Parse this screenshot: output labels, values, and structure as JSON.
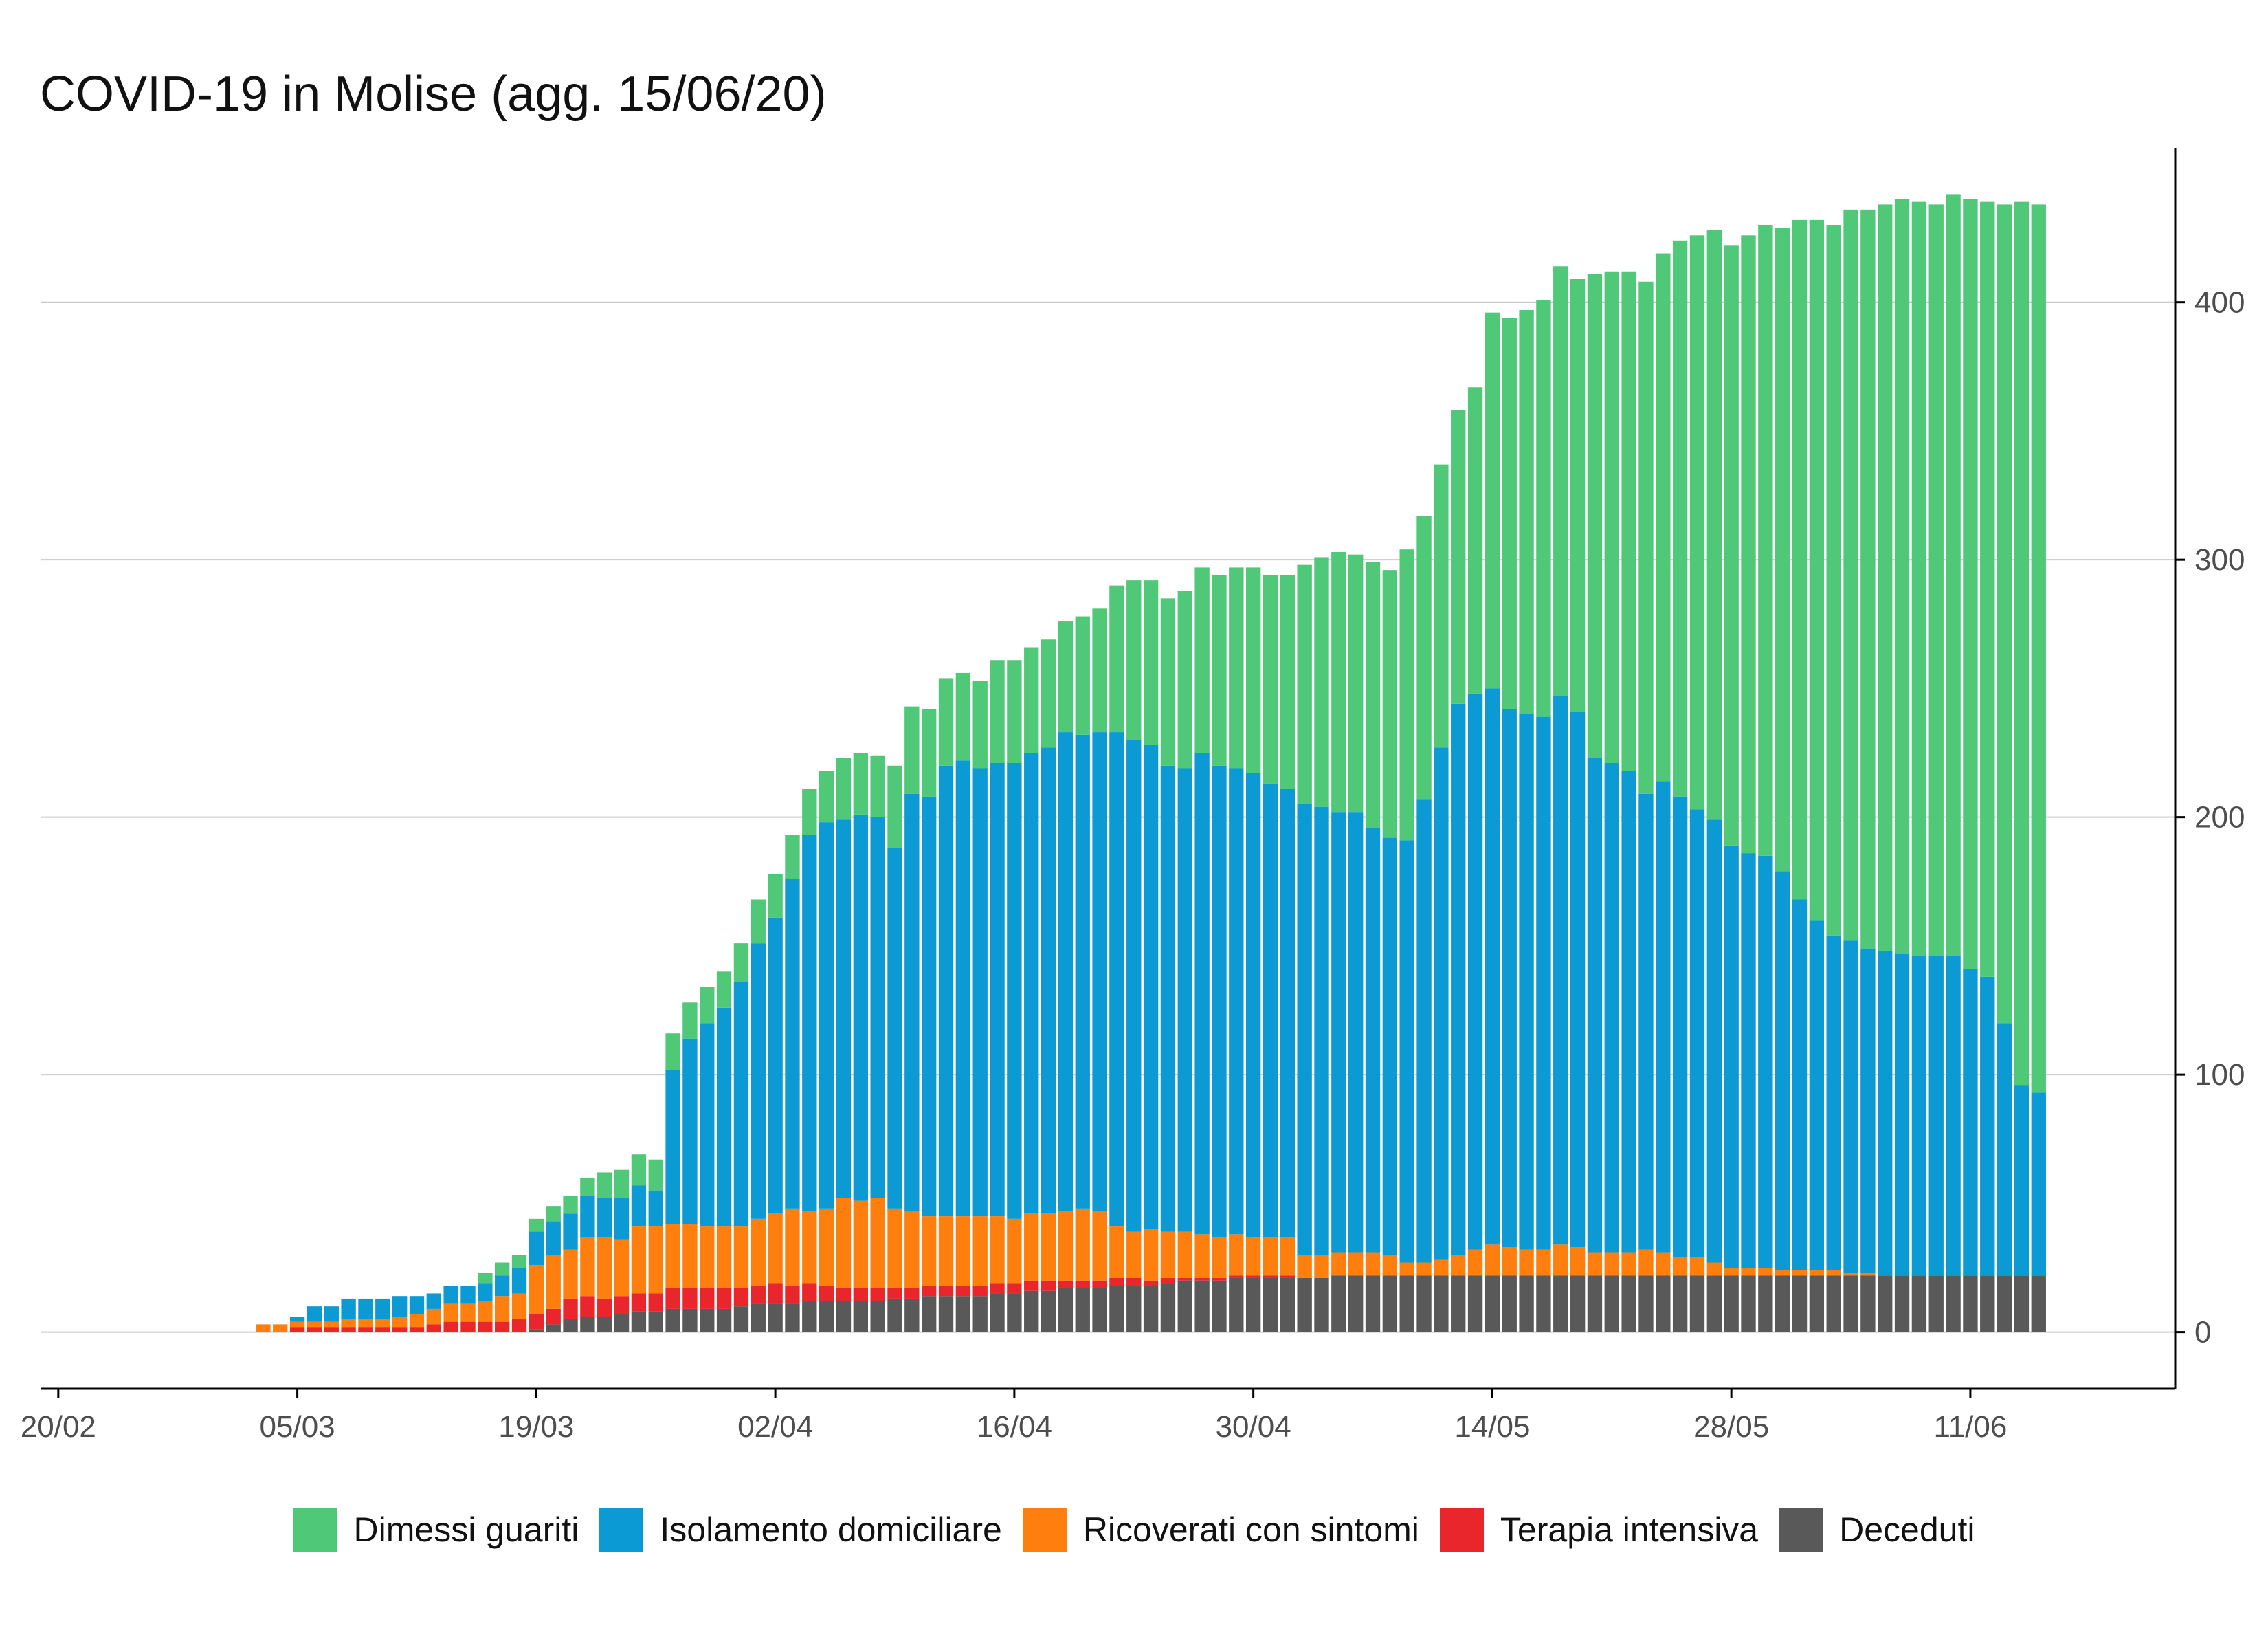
{
  "chart_data": {
    "type": "bar",
    "stacked": true,
    "title": "COVID-19 in Molise (agg. 15/06/20)",
    "xlabel": "",
    "ylabel": "",
    "ylim": [
      -22,
      460
    ],
    "y_ticks": [
      0,
      100,
      200,
      300,
      400
    ],
    "y_axis_side": "right",
    "grid": "horizontal major gridlines",
    "legend_position": "bottom",
    "x_range": [
      "2020-02-19",
      "2020-06-23"
    ],
    "x_ticks": [
      {
        "date": "2020-02-20",
        "label": "20/02"
      },
      {
        "date": "2020-03-05",
        "label": "05/03"
      },
      {
        "date": "2020-03-19",
        "label": "19/03"
      },
      {
        "date": "2020-04-02",
        "label": "02/04"
      },
      {
        "date": "2020-04-16",
        "label": "16/04"
      },
      {
        "date": "2020-04-30",
        "label": "30/04"
      },
      {
        "date": "2020-05-14",
        "label": "14/05"
      },
      {
        "date": "2020-05-28",
        "label": "28/05"
      },
      {
        "date": "2020-06-11",
        "label": "11/06"
      }
    ],
    "x": [
      "2020-03-03",
      "2020-03-04",
      "2020-03-05",
      "2020-03-06",
      "2020-03-07",
      "2020-03-08",
      "2020-03-09",
      "2020-03-10",
      "2020-03-11",
      "2020-03-12",
      "2020-03-13",
      "2020-03-14",
      "2020-03-15",
      "2020-03-16",
      "2020-03-17",
      "2020-03-18",
      "2020-03-19",
      "2020-03-20",
      "2020-03-21",
      "2020-03-22",
      "2020-03-23",
      "2020-03-24",
      "2020-03-25",
      "2020-03-26",
      "2020-03-27",
      "2020-03-28",
      "2020-03-29",
      "2020-03-30",
      "2020-03-31",
      "2020-04-01",
      "2020-04-02",
      "2020-04-03",
      "2020-04-04",
      "2020-04-05",
      "2020-04-06",
      "2020-04-07",
      "2020-04-08",
      "2020-04-09",
      "2020-04-10",
      "2020-04-11",
      "2020-04-12",
      "2020-04-13",
      "2020-04-14",
      "2020-04-15",
      "2020-04-16",
      "2020-04-17",
      "2020-04-18",
      "2020-04-19",
      "2020-04-20",
      "2020-04-21",
      "2020-04-22",
      "2020-04-23",
      "2020-04-24",
      "2020-04-25",
      "2020-04-26",
      "2020-04-27",
      "2020-04-28",
      "2020-04-29",
      "2020-04-30",
      "2020-05-01",
      "2020-05-02",
      "2020-05-03",
      "2020-05-04",
      "2020-05-05",
      "2020-05-06",
      "2020-05-07",
      "2020-05-08",
      "2020-05-09",
      "2020-05-10",
      "2020-05-11",
      "2020-05-12",
      "2020-05-13",
      "2020-05-14",
      "2020-05-15",
      "2020-05-16",
      "2020-05-17",
      "2020-05-18",
      "2020-05-19",
      "2020-05-20",
      "2020-05-21",
      "2020-05-22",
      "2020-05-23",
      "2020-05-24",
      "2020-05-25",
      "2020-05-26",
      "2020-05-27",
      "2020-05-28",
      "2020-05-29",
      "2020-05-30",
      "2020-05-31",
      "2020-06-01",
      "2020-06-02",
      "2020-06-03",
      "2020-06-04",
      "2020-06-05",
      "2020-06-06",
      "2020-06-07",
      "2020-06-08",
      "2020-06-09",
      "2020-06-10",
      "2020-06-11",
      "2020-06-12",
      "2020-06-13",
      "2020-06-14",
      "2020-06-15"
    ],
    "series": [
      {
        "name": "Deceduti",
        "color": "#595959",
        "values": [
          0,
          0,
          0,
          0,
          0,
          0,
          0,
          0,
          0,
          0,
          0,
          0,
          0,
          0,
          0,
          0,
          1,
          3,
          5,
          6,
          6,
          7,
          8,
          8,
          9,
          9,
          9,
          9,
          10,
          11,
          11,
          11,
          12,
          12,
          12,
          12,
          12,
          13,
          13,
          14,
          14,
          14,
          14,
          15,
          15,
          16,
          16,
          17,
          17,
          17,
          18,
          18,
          18,
          19,
          20,
          20,
          20,
          21,
          21,
          21,
          21,
          21,
          21,
          22,
          22,
          22,
          22,
          22,
          22,
          22,
          22,
          22,
          22,
          22,
          22,
          22,
          22,
          22,
          22,
          22,
          22,
          22,
          22,
          22,
          22,
          22,
          22,
          22,
          22,
          22,
          22,
          22,
          22,
          22,
          22,
          22,
          22,
          22,
          22,
          22,
          22,
          22,
          22,
          22,
          22
        ]
      },
      {
        "name": "Terapia intensiva",
        "color": "#e8262b",
        "values": [
          0,
          0,
          2,
          2,
          2,
          2,
          2,
          2,
          2,
          2,
          3,
          4,
          4,
          4,
          4,
          5,
          6,
          6,
          8,
          8,
          7,
          7,
          7,
          7,
          8,
          8,
          8,
          8,
          7,
          7,
          8,
          7,
          7,
          6,
          5,
          5,
          5,
          4,
          4,
          4,
          4,
          4,
          4,
          4,
          4,
          4,
          4,
          3,
          3,
          3,
          3,
          3,
          2,
          2,
          1,
          1,
          1,
          1,
          1,
          1,
          1,
          0,
          0,
          0,
          0,
          0,
          0,
          0,
          0,
          0,
          0,
          0,
          0,
          0,
          0,
          0,
          0,
          0,
          0,
          0,
          0,
          0,
          0,
          0,
          0,
          0,
          0,
          0,
          0,
          0,
          0,
          0,
          0,
          0,
          0,
          0,
          0,
          0,
          0,
          0,
          0,
          0,
          0,
          0,
          0
        ]
      },
      {
        "name": "Ricoverati con sintomi",
        "color": "#ff7f0e",
        "values": [
          3,
          3,
          2,
          2,
          2,
          3,
          3,
          3,
          4,
          5,
          6,
          7,
          7,
          8,
          10,
          10,
          19,
          21,
          19,
          23,
          24,
          22,
          26,
          26,
          25,
          25,
          24,
          24,
          24,
          26,
          27,
          30,
          28,
          30,
          35,
          34,
          35,
          31,
          30,
          27,
          27,
          27,
          27,
          26,
          25,
          26,
          26,
          27,
          28,
          27,
          20,
          18,
          20,
          18,
          18,
          17,
          16,
          16,
          15,
          15,
          15,
          9,
          9,
          9,
          9,
          9,
          8,
          5,
          5,
          6,
          8,
          10,
          12,
          11,
          10,
          10,
          12,
          11,
          9,
          9,
          9,
          10,
          9,
          7,
          7,
          5,
          3,
          3,
          3,
          2,
          2,
          2,
          2,
          1,
          1,
          0,
          0,
          0,
          0,
          0,
          0,
          0,
          0,
          0,
          0
        ]
      },
      {
        "name": "Isolamento domiciliare",
        "color": "#0b9ad3",
        "values": [
          0,
          0,
          2,
          6,
          6,
          8,
          8,
          8,
          8,
          7,
          6,
          7,
          7,
          7,
          8,
          10,
          13,
          13,
          14,
          16,
          15,
          16,
          16,
          14,
          60,
          72,
          79,
          85,
          95,
          107,
          115,
          128,
          146,
          150,
          147,
          150,
          148,
          140,
          162,
          163,
          175,
          177,
          174,
          176,
          177,
          179,
          181,
          186,
          184,
          186,
          192,
          191,
          188,
          181,
          180,
          187,
          183,
          181,
          180,
          176,
          174,
          175,
          174,
          171,
          171,
          165,
          162,
          164,
          180,
          199,
          214,
          216,
          216,
          209,
          208,
          207,
          213,
          208,
          192,
          190,
          187,
          177,
          183,
          179,
          174,
          172,
          164,
          161,
          160,
          155,
          144,
          136,
          130,
          129,
          126,
          126,
          125,
          124,
          124,
          124,
          119,
          116,
          98,
          74,
          71
        ]
      },
      {
        "name": "Dimessi guariti",
        "color": "#4fc878",
        "values": [
          0,
          0,
          0,
          0,
          0,
          0,
          0,
          0,
          0,
          0,
          0,
          0,
          0,
          4,
          5,
          5,
          5,
          6,
          7,
          7,
          10,
          11,
          12,
          12,
          14,
          14,
          14,
          14,
          15,
          17,
          17,
          17,
          18,
          20,
          24,
          24,
          24,
          32,
          34,
          34,
          34,
          34,
          34,
          40,
          40,
          41,
          42,
          43,
          46,
          48,
          57,
          62,
          64,
          65,
          69,
          72,
          74,
          78,
          80,
          81,
          83,
          93,
          97,
          101,
          100,
          103,
          104,
          113,
          110,
          110,
          114,
          119,
          146,
          152,
          157,
          162,
          167,
          168,
          188,
          191,
          194,
          199,
          205,
          216,
          223,
          229,
          233,
          240,
          245,
          250,
          264,
          272,
          276,
          284,
          287,
          290,
          293,
          293,
          292,
          296,
          299,
          301,
          318,
          343,
          345
        ]
      }
    ]
  }
}
